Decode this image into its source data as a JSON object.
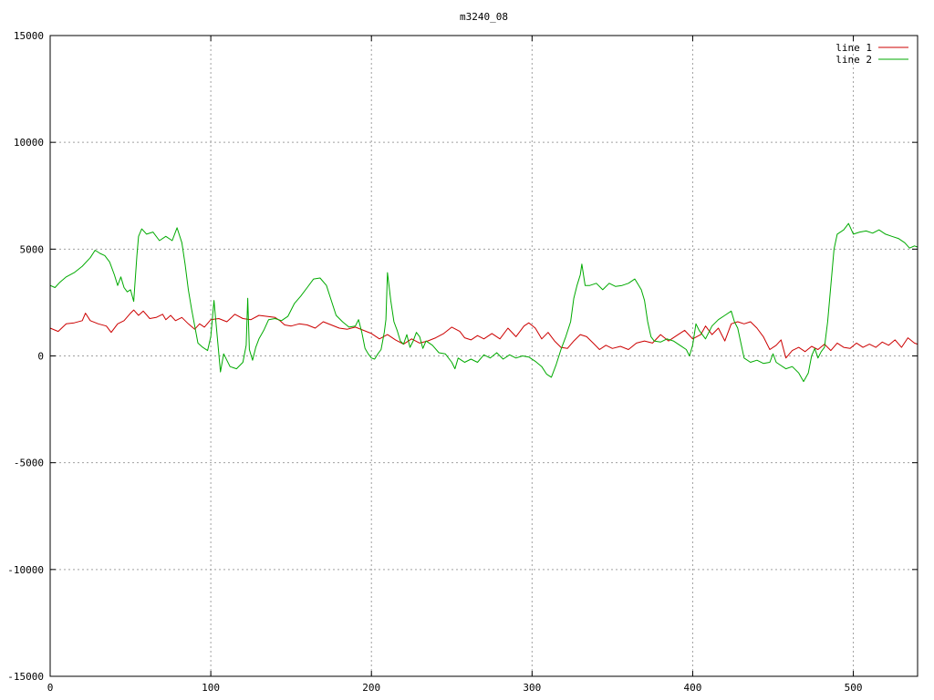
{
  "chart_data": {
    "type": "line",
    "title": "m3240_08",
    "xlabel": "",
    "ylabel": "",
    "xlim": [
      0,
      540
    ],
    "ylim": [
      -15000,
      15000
    ],
    "x_ticks": [
      0,
      100,
      200,
      300,
      400,
      500
    ],
    "y_ticks": [
      -15000,
      -10000,
      -5000,
      0,
      5000,
      10000,
      15000
    ],
    "grid": true,
    "legend": "top-right",
    "series": [
      {
        "name": "line 1",
        "color": "#cc0000",
        "points": [
          [
            0,
            1300
          ],
          [
            5,
            1150
          ],
          [
            10,
            1500
          ],
          [
            15,
            1550
          ],
          [
            20,
            1650
          ],
          [
            22,
            2000
          ],
          [
            25,
            1650
          ],
          [
            30,
            1500
          ],
          [
            35,
            1400
          ],
          [
            38,
            1100
          ],
          [
            42,
            1500
          ],
          [
            46,
            1650
          ],
          [
            50,
            2000
          ],
          [
            52,
            2150
          ],
          [
            55,
            1900
          ],
          [
            58,
            2100
          ],
          [
            62,
            1750
          ],
          [
            66,
            1800
          ],
          [
            70,
            1950
          ],
          [
            72,
            1700
          ],
          [
            75,
            1900
          ],
          [
            78,
            1650
          ],
          [
            82,
            1800
          ],
          [
            86,
            1500
          ],
          [
            90,
            1250
          ],
          [
            93,
            1500
          ],
          [
            96,
            1350
          ],
          [
            100,
            1700
          ],
          [
            105,
            1750
          ],
          [
            110,
            1600
          ],
          [
            115,
            1950
          ],
          [
            120,
            1750
          ],
          [
            125,
            1700
          ],
          [
            130,
            1900
          ],
          [
            135,
            1850
          ],
          [
            140,
            1800
          ],
          [
            143,
            1650
          ],
          [
            146,
            1450
          ],
          [
            150,
            1400
          ],
          [
            155,
            1500
          ],
          [
            160,
            1450
          ],
          [
            165,
            1300
          ],
          [
            170,
            1600
          ],
          [
            175,
            1450
          ],
          [
            180,
            1300
          ],
          [
            185,
            1250
          ],
          [
            190,
            1350
          ],
          [
            195,
            1200
          ],
          [
            200,
            1050
          ],
          [
            205,
            800
          ],
          [
            210,
            1000
          ],
          [
            215,
            750
          ],
          [
            220,
            550
          ],
          [
            225,
            800
          ],
          [
            230,
            600
          ],
          [
            235,
            700
          ],
          [
            240,
            850
          ],
          [
            245,
            1050
          ],
          [
            250,
            1350
          ],
          [
            255,
            1150
          ],
          [
            258,
            850
          ],
          [
            262,
            750
          ],
          [
            266,
            950
          ],
          [
            270,
            800
          ],
          [
            275,
            1050
          ],
          [
            280,
            800
          ],
          [
            285,
            1300
          ],
          [
            290,
            900
          ],
          [
            295,
            1400
          ],
          [
            298,
            1550
          ],
          [
            302,
            1300
          ],
          [
            306,
            800
          ],
          [
            310,
            1100
          ],
          [
            314,
            700
          ],
          [
            318,
            400
          ],
          [
            322,
            350
          ],
          [
            326,
            700
          ],
          [
            330,
            1000
          ],
          [
            334,
            900
          ],
          [
            338,
            600
          ],
          [
            342,
            300
          ],
          [
            346,
            500
          ],
          [
            350,
            350
          ],
          [
            355,
            450
          ],
          [
            360,
            300
          ],
          [
            365,
            600
          ],
          [
            370,
            700
          ],
          [
            375,
            600
          ],
          [
            380,
            1000
          ],
          [
            385,
            700
          ],
          [
            390,
            950
          ],
          [
            395,
            1200
          ],
          [
            400,
            800
          ],
          [
            405,
            1000
          ],
          [
            408,
            1400
          ],
          [
            412,
            1000
          ],
          [
            416,
            1300
          ],
          [
            420,
            700
          ],
          [
            424,
            1500
          ],
          [
            428,
            1600
          ],
          [
            432,
            1500
          ],
          [
            436,
            1600
          ],
          [
            440,
            1300
          ],
          [
            444,
            900
          ],
          [
            448,
            300
          ],
          [
            452,
            500
          ],
          [
            455,
            750
          ],
          [
            458,
            -100
          ],
          [
            462,
            250
          ],
          [
            466,
            400
          ],
          [
            470,
            200
          ],
          [
            474,
            450
          ],
          [
            478,
            300
          ],
          [
            482,
            550
          ],
          [
            486,
            250
          ],
          [
            490,
            600
          ],
          [
            494,
            400
          ],
          [
            498,
            350
          ],
          [
            502,
            600
          ],
          [
            506,
            400
          ],
          [
            510,
            550
          ],
          [
            514,
            400
          ],
          [
            518,
            650
          ],
          [
            522,
            500
          ],
          [
            526,
            750
          ],
          [
            530,
            400
          ],
          [
            534,
            850
          ],
          [
            538,
            600
          ],
          [
            540,
            550
          ]
        ]
      },
      {
        "name": "line 2",
        "color": "#00aa00",
        "points": [
          [
            0,
            3300
          ],
          [
            3,
            3200
          ],
          [
            6,
            3450
          ],
          [
            10,
            3700
          ],
          [
            15,
            3900
          ],
          [
            20,
            4200
          ],
          [
            25,
            4600
          ],
          [
            28,
            4950
          ],
          [
            31,
            4800
          ],
          [
            34,
            4700
          ],
          [
            37,
            4400
          ],
          [
            40,
            3800
          ],
          [
            42,
            3300
          ],
          [
            44,
            3700
          ],
          [
            46,
            3200
          ],
          [
            48,
            3000
          ],
          [
            50,
            3100
          ],
          [
            52,
            2550
          ],
          [
            54,
            4700
          ],
          [
            55,
            5600
          ],
          [
            57,
            5950
          ],
          [
            60,
            5700
          ],
          [
            64,
            5800
          ],
          [
            68,
            5400
          ],
          [
            72,
            5600
          ],
          [
            76,
            5400
          ],
          [
            79,
            6000
          ],
          [
            82,
            5300
          ],
          [
            84,
            4300
          ],
          [
            86,
            3100
          ],
          [
            88,
            2200
          ],
          [
            90,
            1400
          ],
          [
            92,
            600
          ],
          [
            95,
            400
          ],
          [
            98,
            250
          ],
          [
            100,
            900
          ],
          [
            102,
            2600
          ],
          [
            104,
            900
          ],
          [
            106,
            -750
          ],
          [
            108,
            100
          ],
          [
            110,
            -200
          ],
          [
            112,
            -500
          ],
          [
            116,
            -600
          ],
          [
            120,
            -300
          ],
          [
            122,
            500
          ],
          [
            123,
            2700
          ],
          [
            124,
            300
          ],
          [
            126,
            -200
          ],
          [
            128,
            400
          ],
          [
            130,
            800
          ],
          [
            133,
            1200
          ],
          [
            136,
            1700
          ],
          [
            140,
            1750
          ],
          [
            144,
            1650
          ],
          [
            148,
            1850
          ],
          [
            152,
            2450
          ],
          [
            156,
            2800
          ],
          [
            160,
            3200
          ],
          [
            164,
            3600
          ],
          [
            168,
            3650
          ],
          [
            172,
            3300
          ],
          [
            175,
            2600
          ],
          [
            178,
            1900
          ],
          [
            182,
            1600
          ],
          [
            186,
            1350
          ],
          [
            190,
            1400
          ],
          [
            192,
            1700
          ],
          [
            194,
            1100
          ],
          [
            196,
            350
          ],
          [
            198,
            100
          ],
          [
            200,
            -100
          ],
          [
            202,
            -150
          ],
          [
            204,
            100
          ],
          [
            206,
            300
          ],
          [
            208,
            1100
          ],
          [
            209,
            1700
          ],
          [
            210,
            3900
          ],
          [
            212,
            2600
          ],
          [
            214,
            1600
          ],
          [
            216,
            1200
          ],
          [
            218,
            700
          ],
          [
            220,
            550
          ],
          [
            222,
            1000
          ],
          [
            224,
            400
          ],
          [
            226,
            700
          ],
          [
            228,
            1100
          ],
          [
            230,
            900
          ],
          [
            232,
            350
          ],
          [
            234,
            700
          ],
          [
            238,
            500
          ],
          [
            242,
            150
          ],
          [
            246,
            100
          ],
          [
            250,
            -300
          ],
          [
            252,
            -600
          ],
          [
            254,
            -100
          ],
          [
            258,
            -300
          ],
          [
            262,
            -150
          ],
          [
            266,
            -300
          ],
          [
            270,
            50
          ],
          [
            274,
            -100
          ],
          [
            278,
            150
          ],
          [
            282,
            -150
          ],
          [
            286,
            50
          ],
          [
            290,
            -100
          ],
          [
            294,
            0
          ],
          [
            298,
            -50
          ],
          [
            302,
            -250
          ],
          [
            306,
            -500
          ],
          [
            309,
            -850
          ],
          [
            312,
            -1000
          ],
          [
            315,
            -400
          ],
          [
            318,
            300
          ],
          [
            321,
            900
          ],
          [
            324,
            1600
          ],
          [
            326,
            2700
          ],
          [
            328,
            3300
          ],
          [
            330,
            3800
          ],
          [
            331,
            4300
          ],
          [
            333,
            3300
          ],
          [
            336,
            3300
          ],
          [
            340,
            3400
          ],
          [
            344,
            3100
          ],
          [
            348,
            3400
          ],
          [
            352,
            3250
          ],
          [
            356,
            3300
          ],
          [
            360,
            3400
          ],
          [
            364,
            3600
          ],
          [
            366,
            3350
          ],
          [
            368,
            3100
          ],
          [
            370,
            2600
          ],
          [
            372,
            1600
          ],
          [
            374,
            900
          ],
          [
            376,
            700
          ],
          [
            380,
            650
          ],
          [
            384,
            800
          ],
          [
            388,
            700
          ],
          [
            392,
            500
          ],
          [
            396,
            300
          ],
          [
            398,
            0
          ],
          [
            400,
            500
          ],
          [
            402,
            1500
          ],
          [
            404,
            1200
          ],
          [
            408,
            800
          ],
          [
            412,
            1400
          ],
          [
            416,
            1700
          ],
          [
            420,
            1900
          ],
          [
            424,
            2100
          ],
          [
            426,
            1600
          ],
          [
            428,
            1300
          ],
          [
            430,
            600
          ],
          [
            432,
            -100
          ],
          [
            436,
            -300
          ],
          [
            440,
            -200
          ],
          [
            444,
            -350
          ],
          [
            448,
            -300
          ],
          [
            450,
            100
          ],
          [
            452,
            -300
          ],
          [
            454,
            -400
          ],
          [
            458,
            -600
          ],
          [
            462,
            -500
          ],
          [
            466,
            -800
          ],
          [
            469,
            -1200
          ],
          [
            472,
            -800
          ],
          [
            474,
            0
          ],
          [
            476,
            350
          ],
          [
            478,
            -100
          ],
          [
            480,
            200
          ],
          [
            482,
            400
          ],
          [
            484,
            1600
          ],
          [
            486,
            3300
          ],
          [
            488,
            5000
          ],
          [
            490,
            5700
          ],
          [
            494,
            5900
          ],
          [
            497,
            6200
          ],
          [
            500,
            5700
          ],
          [
            504,
            5800
          ],
          [
            508,
            5850
          ],
          [
            512,
            5750
          ],
          [
            516,
            5900
          ],
          [
            520,
            5700
          ],
          [
            524,
            5600
          ],
          [
            528,
            5500
          ],
          [
            532,
            5300
          ],
          [
            535,
            5050
          ],
          [
            538,
            5150
          ],
          [
            540,
            5100
          ]
        ]
      }
    ]
  }
}
